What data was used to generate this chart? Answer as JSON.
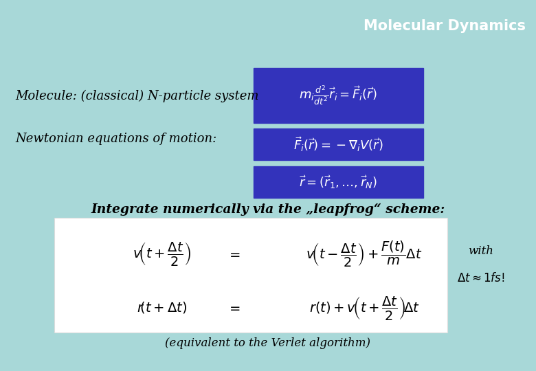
{
  "background_color": "#a8d8d8",
  "title": "Molecular Dynamics",
  "title_color": "white",
  "title_fontsize": 15,
  "box_color": "#3333bb",
  "box_text_color": "white",
  "white_box_color": "white",
  "label1": "Molecule: (classical) N-particle system",
  "label2": "Newtonian equations of motion:",
  "label3": "Integrate numerically via the „leapfrog“ scheme:",
  "label4": "(equivalent to the Verlet algorithm)",
  "with_label": "with",
  "dt_label": "$\\Delta t \\approx 1fs!$"
}
